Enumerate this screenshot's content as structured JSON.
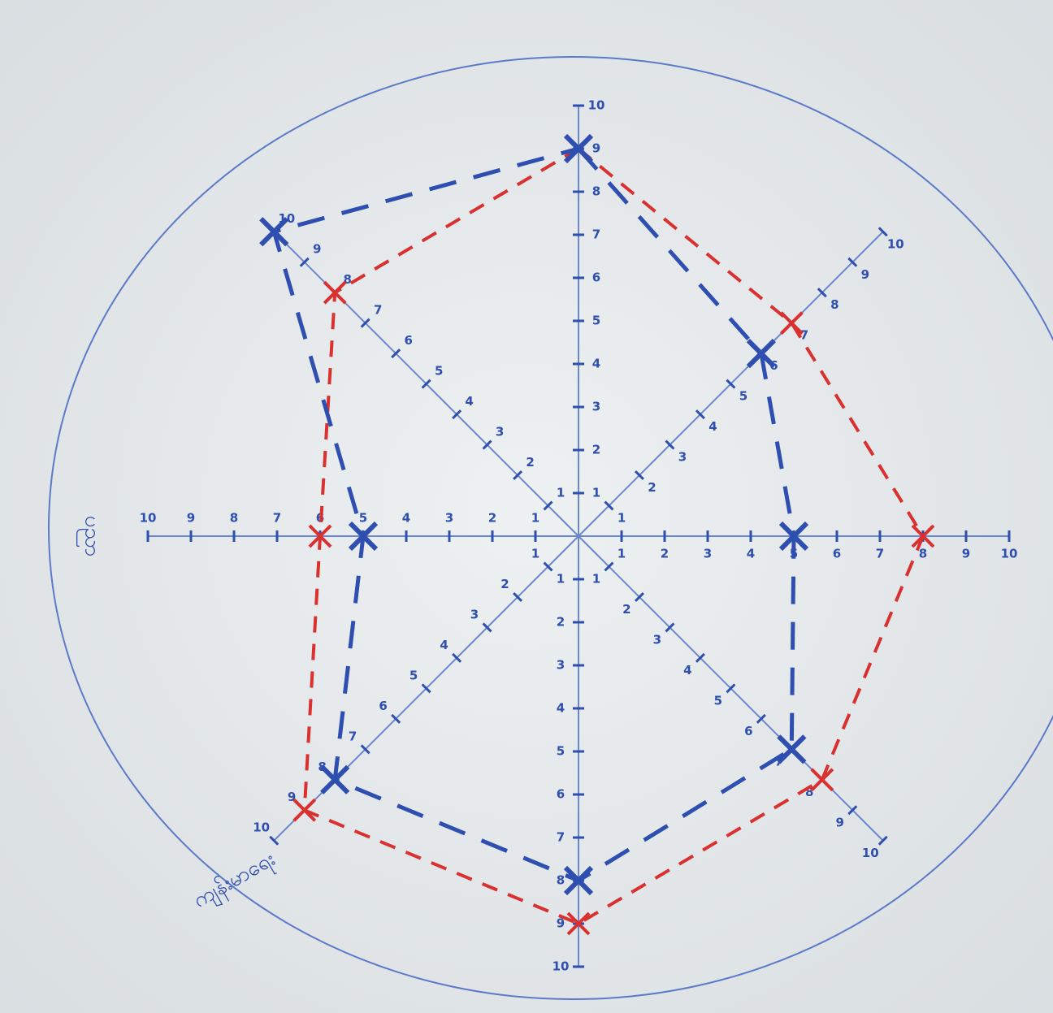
{
  "chart_data": {
    "type": "radar",
    "categories": [
      null,
      null,
      null,
      null,
      null,
      "ကျန်းမာရေး",
      "ပညာ",
      null
    ],
    "rlim": [
      0,
      10
    ],
    "rticks": [
      1,
      2,
      3,
      4,
      5,
      6,
      7,
      8,
      9,
      10
    ],
    "series": [
      {
        "color": "#d93030",
        "values": [
          9,
          7,
          8,
          8,
          9,
          9,
          6,
          8
        ]
      },
      {
        "color": "#2f4fb0",
        "values": [
          9,
          6,
          5,
          7,
          8,
          8,
          5,
          10
        ]
      }
    ]
  }
}
